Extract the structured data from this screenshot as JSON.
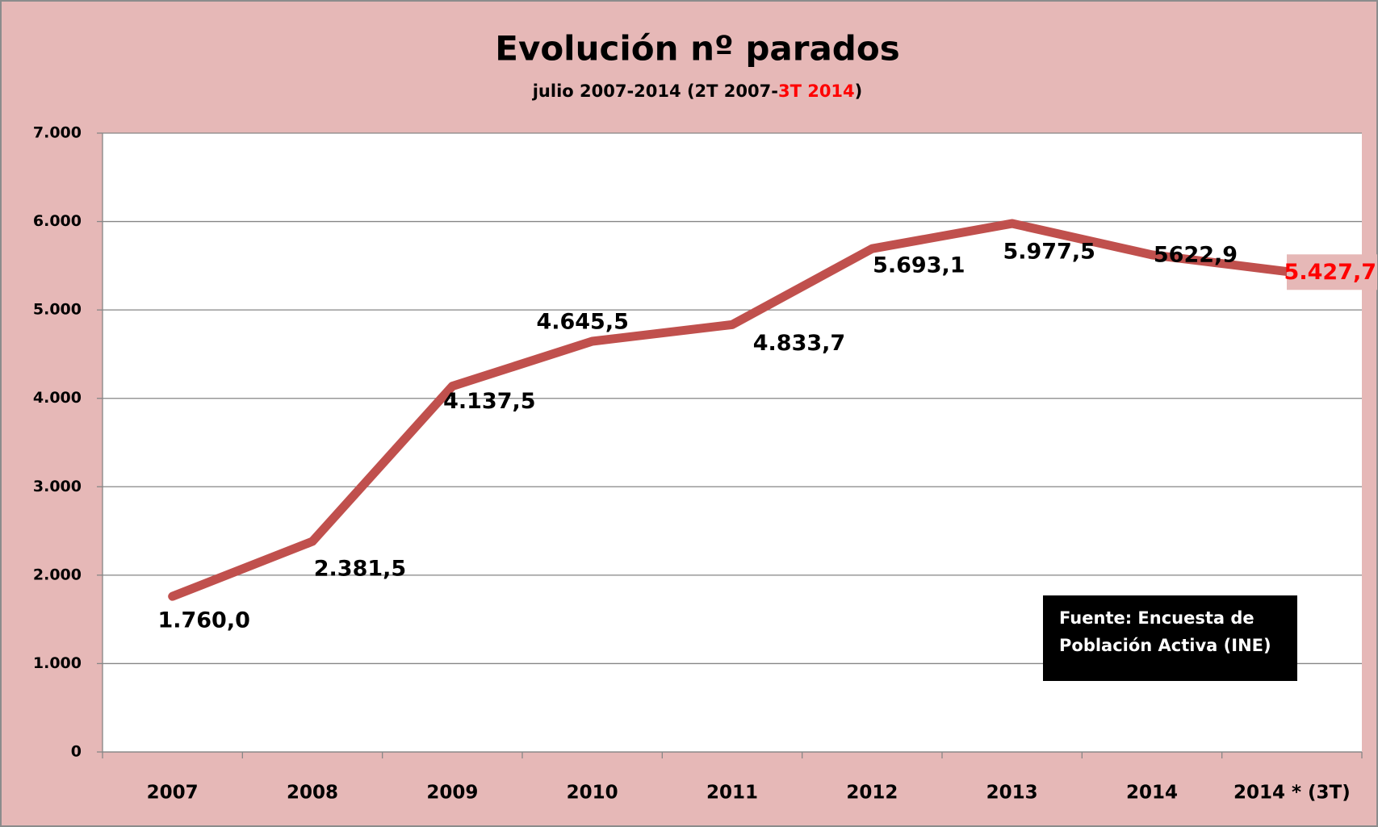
{
  "chart_data": {
    "type": "line",
    "title": "Evolución nº parados",
    "subtitle": [
      {
        "text": "julio 2007-2014 (2T 2007-",
        "color": "#000000"
      },
      {
        "text": "3T 2014",
        "color": "#ff0000"
      },
      {
        "text": ")",
        "color": "#000000"
      }
    ],
    "categories": [
      "2007",
      "2008",
      "2009",
      "2010",
      "2011",
      "2012",
      "2013",
      "2014",
      "2014 * (3T)"
    ],
    "series": [
      {
        "name": "parados",
        "color": "#c0504d",
        "values": [
          1760.0,
          2381.5,
          4137.5,
          4645.5,
          4833.7,
          5693.1,
          5977.5,
          5622.9,
          5427.7
        ],
        "value_labels": [
          "1.760,0",
          "2.381,5",
          "4.137,5",
          "4.645,5",
          "4.833,7",
          "5.693,1",
          "5.977,5",
          "5622,9",
          "5.427,7"
        ]
      }
    ],
    "ylim": [
      0,
      7000
    ],
    "yticks": [
      0,
      {
        "value": 1000,
        "label": "1.000"
      },
      {
        "value": 2000,
        "label": "2.000"
      },
      {
        "value": 3000,
        "label": "3.000"
      },
      {
        "value": 4000,
        "label": "4.000"
      },
      {
        "value": 5000,
        "label": "5.000"
      },
      {
        "value": 6000,
        "label": "6.000"
      },
      {
        "value": 7000,
        "label": "7.000"
      }
    ],
    "grid": true,
    "annotation": [
      "Fuente:  Encuesta de",
      "Población Activa (INE)"
    ]
  }
}
